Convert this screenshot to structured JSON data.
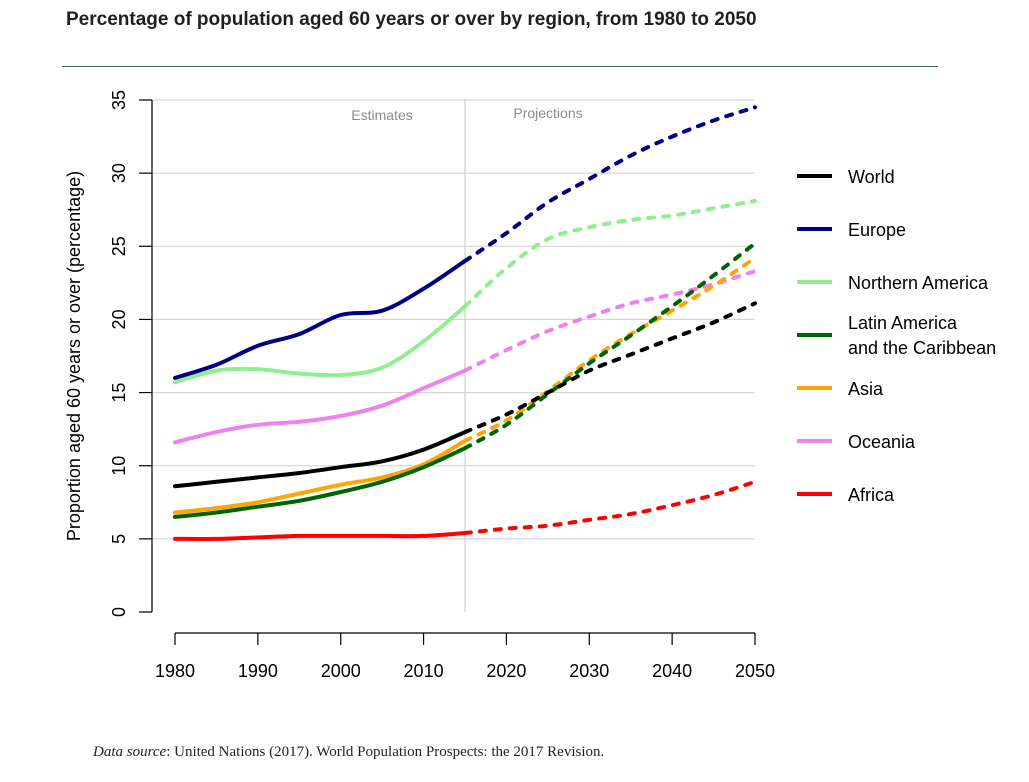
{
  "chart_data": {
    "type": "line",
    "title": "Percentage of population aged 60 years or over by region, from 1980 to 2050",
    "ylabel": "Proportion aged 60 years or over (percentage)",
    "xlabel": "",
    "xlim": [
      1980,
      2050
    ],
    "ylim": [
      0,
      35
    ],
    "x_ticks": [
      1980,
      1990,
      2000,
      2010,
      2020,
      2030,
      2040,
      2050
    ],
    "y_ticks": [
      0,
      5,
      10,
      15,
      20,
      25,
      30,
      35
    ],
    "grid": true,
    "legend_position": "right",
    "divider_year": 2015,
    "annotations": {
      "estimates": "Estimates",
      "projections": "Projections"
    },
    "series": [
      {
        "name": "World",
        "color": "#000000",
        "x": [
          1980,
          1985,
          1990,
          1995,
          2000,
          2005,
          2010,
          2015,
          2020,
          2025,
          2030,
          2035,
          2040,
          2045,
          2050
        ],
        "values": [
          8.6,
          8.9,
          9.2,
          9.5,
          9.9,
          10.3,
          11.1,
          12.3,
          13.5,
          15.0,
          16.5,
          17.6,
          18.7,
          19.8,
          21.1
        ]
      },
      {
        "name": "Europe",
        "color": "#000080",
        "x": [
          1980,
          1985,
          1990,
          1995,
          2000,
          2005,
          2010,
          2015,
          2020,
          2025,
          2030,
          2035,
          2040,
          2045,
          2050
        ],
        "values": [
          16.0,
          16.9,
          18.2,
          19.0,
          20.3,
          20.6,
          22.1,
          24.0,
          25.9,
          28.0,
          29.6,
          31.2,
          32.5,
          33.6,
          34.5
        ]
      },
      {
        "name": "Northern America",
        "color": "#90ee90",
        "x": [
          1980,
          1985,
          1990,
          1995,
          2000,
          2005,
          2010,
          2015,
          2020,
          2025,
          2030,
          2035,
          2040,
          2045,
          2050
        ],
        "values": [
          15.7,
          16.5,
          16.6,
          16.3,
          16.2,
          16.7,
          18.5,
          20.9,
          23.5,
          25.5,
          26.3,
          26.8,
          27.1,
          27.6,
          28.1
        ]
      },
      {
        "name": "Latin America\nand the Caribbean",
        "color": "#006400",
        "x": [
          1980,
          1985,
          1990,
          1995,
          2000,
          2005,
          2010,
          2015,
          2020,
          2025,
          2030,
          2035,
          2040,
          2045,
          2050
        ],
        "values": [
          6.5,
          6.8,
          7.2,
          7.6,
          8.2,
          8.9,
          9.9,
          11.2,
          12.8,
          14.9,
          17.0,
          18.9,
          20.9,
          23.0,
          25.2
        ]
      },
      {
        "name": "Asia",
        "color": "#ffa500",
        "x": [
          1980,
          1985,
          1990,
          1995,
          2000,
          2005,
          2010,
          2015,
          2020,
          2025,
          2030,
          2035,
          2040,
          2045,
          2050
        ],
        "values": [
          6.8,
          7.1,
          7.5,
          8.1,
          8.7,
          9.2,
          10.1,
          11.7,
          13.1,
          15.1,
          17.2,
          19.0,
          20.6,
          22.3,
          24.2
        ]
      },
      {
        "name": "Oceania",
        "color": "#ee82ee",
        "x": [
          1980,
          1985,
          1990,
          1995,
          2000,
          2005,
          2010,
          2015,
          2020,
          2025,
          2030,
          2035,
          2040,
          2045,
          2050
        ],
        "values": [
          11.6,
          12.3,
          12.8,
          13.0,
          13.4,
          14.1,
          15.3,
          16.5,
          17.9,
          19.2,
          20.2,
          21.1,
          21.7,
          22.4,
          23.3
        ]
      },
      {
        "name": "Africa",
        "color": "#ff0000",
        "x": [
          1980,
          1985,
          1990,
          1995,
          2000,
          2005,
          2010,
          2015,
          2020,
          2025,
          2030,
          2035,
          2040,
          2045,
          2050
        ],
        "values": [
          5.0,
          5.0,
          5.1,
          5.2,
          5.2,
          5.2,
          5.2,
          5.4,
          5.7,
          5.9,
          6.3,
          6.7,
          7.3,
          8.0,
          8.9
        ]
      }
    ]
  },
  "source": {
    "label": "Data source",
    "text": ": United Nations (2017). World Population Prospects: the 2017 Revision."
  }
}
